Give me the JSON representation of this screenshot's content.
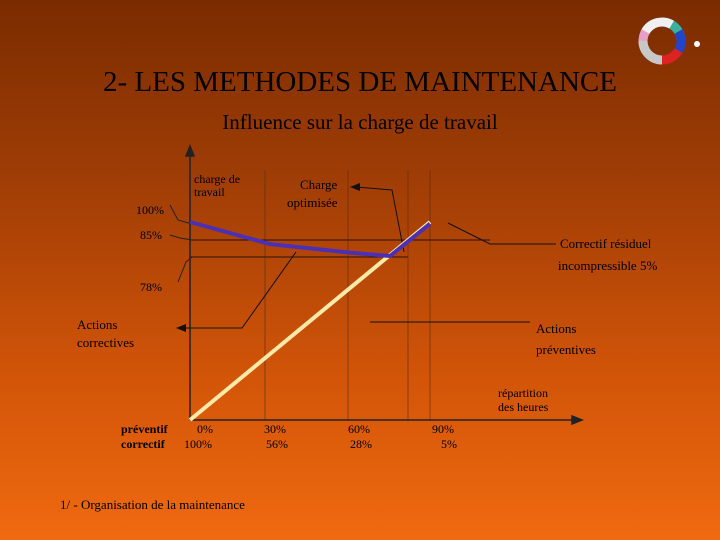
{
  "slide": {
    "title": "2- LES METHODES DE MAINTENANCE",
    "subtitle": "Influence sur la charge de travail",
    "footer": "1/ - Organisation de la maintenance"
  },
  "colors": {
    "charge_line": "#4b2fb5",
    "diagonal_line": "#fbe9a8",
    "axis": "#222222"
  },
  "chart_data": {
    "type": "line",
    "y_axis_label": [
      "charge de",
      "travail"
    ],
    "x_axis_label": [
      "répartition",
      "des heures"
    ],
    "row_labels": [
      "préventif",
      "correctif"
    ],
    "x_ticks": [
      {
        "preventif": "0%",
        "correctif": "100%"
      },
      {
        "preventif": "30%",
        "correctif": "56%"
      },
      {
        "preventif": "60%",
        "correctif": "28%"
      },
      {
        "preventif": "90%",
        "correctif": "5%"
      }
    ],
    "y_ticks": [
      "100%",
      "85%",
      "78%"
    ],
    "series": [
      {
        "points": [
          {
            "x": 0,
            "y": 100
          },
          {
            "x": 30,
            "y": 87
          },
          {
            "x": 60,
            "y": 82
          },
          {
            "x": 75,
            "y": 80
          },
          {
            "x": 90,
            "y": 99
          }
        ]
      },
      {
        "points": [
          {
            "x": 0,
            "y": 0
          },
          {
            "x": 90,
            "y": 100
          }
        ]
      }
    ],
    "annotations": {
      "charge_optimisee": [
        "Charge",
        "optimisée"
      ],
      "correctif_residuel": [
        "Correctif résiduel",
        "incompressible 5%"
      ],
      "actions_correctives": [
        "Actions",
        "correctives"
      ],
      "actions_preventives": [
        "Actions",
        "préventives"
      ]
    }
  }
}
